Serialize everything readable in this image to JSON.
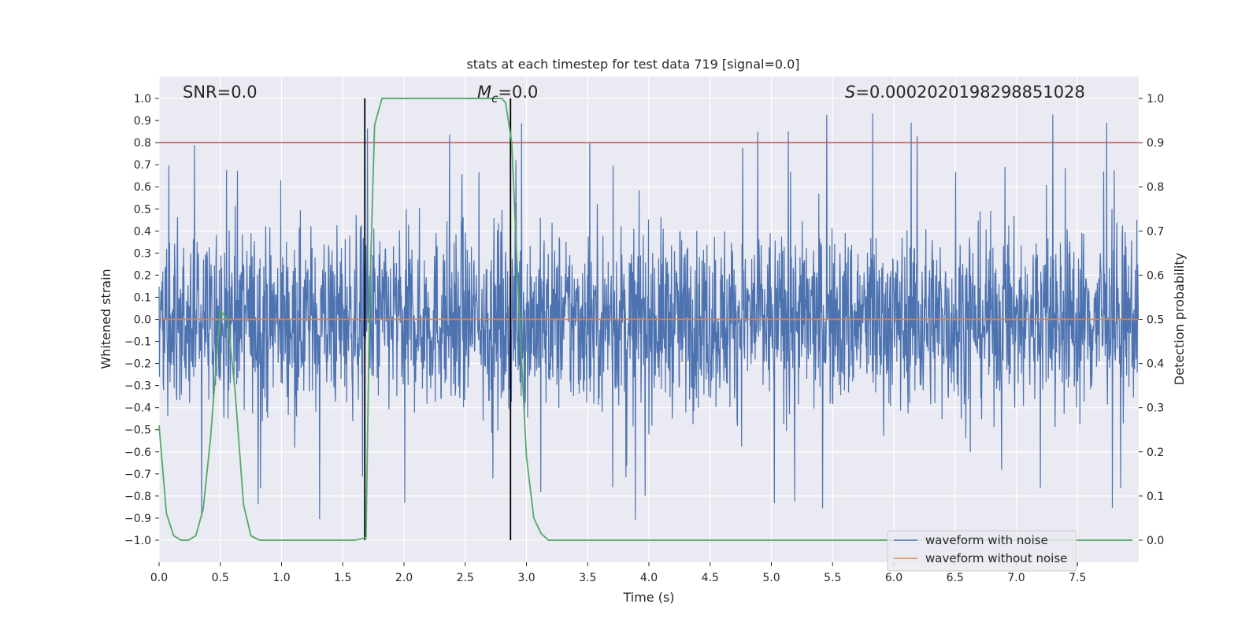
{
  "chart_data": {
    "type": "line",
    "title": "stats at each timestep for test data 719 [signal=0.0]",
    "xlabel": "Time (s)",
    "ylabel_left": "Whitened strain",
    "ylabel_right": "Detection probability",
    "xlim": [
      0.0,
      8.0
    ],
    "ylim_left": [
      -1.1,
      1.1
    ],
    "ylim_right": [
      -0.05,
      1.05
    ],
    "xticks": [
      0.0,
      0.5,
      1.0,
      1.5,
      2.0,
      2.5,
      3.0,
      3.5,
      4.0,
      4.5,
      5.0,
      5.5,
      6.0,
      6.5,
      7.0,
      7.5
    ],
    "xtick_labels": [
      "0.0",
      "0.5",
      "1.0",
      "1.5",
      "2.0",
      "2.5",
      "3.0",
      "3.5",
      "4.0",
      "4.5",
      "5.0",
      "5.5",
      "6.0",
      "6.5",
      "7.0",
      "7.5"
    ],
    "yticks_left": [
      1.0,
      0.9,
      0.8,
      0.7,
      0.6,
      0.5,
      0.4,
      0.3,
      0.2,
      0.1,
      0.0,
      -0.1,
      -0.2,
      -0.3,
      -0.4,
      -0.5,
      -0.6,
      -0.7,
      -0.8,
      -0.9,
      -1.0
    ],
    "ytick_labels_left": [
      "1.0",
      "0.9",
      "0.8",
      "0.7",
      "0.6",
      "0.5",
      "0.4",
      "0.3",
      "0.2",
      "0.1",
      "0.0",
      "−0.1",
      "−0.2",
      "−0.3",
      "−0.4",
      "−0.5",
      "−0.6",
      "−0.7",
      "−0.8",
      "−0.9",
      "−1.0"
    ],
    "yticks_right": [
      1.0,
      0.9,
      0.8,
      0.7,
      0.6,
      0.5,
      0.4,
      0.3,
      0.2,
      0.1,
      0.0
    ],
    "ytick_labels_right": [
      "1.0",
      "0.9",
      "0.8",
      "0.7",
      "0.6",
      "0.5",
      "0.4",
      "0.3",
      "0.2",
      "0.1",
      "0.0"
    ],
    "grid": true,
    "legend_position": "lower-right",
    "annotations": {
      "snr": "SNR=0.0",
      "mc_prefix": "M",
      "mc_sub": "c",
      "mc_suffix": "=0.0",
      "s_prefix": "S",
      "s_suffix": "=0.00020201982988510 28"
    },
    "threshold_right_axis": 0.9,
    "vertical_markers_x": [
      1.68,
      2.87
    ],
    "series": [
      {
        "name": "waveform with noise",
        "color": "#4c72b0",
        "kind": "noise",
        "envelope_min": -1.0,
        "envelope_max": 0.99,
        "duration_s": 8.0
      },
      {
        "name": "waveform without noise",
        "color": "#dd8452",
        "kind": "constant",
        "value": 0.0
      },
      {
        "name": "detection probability",
        "color": "#55a868",
        "axis": "right",
        "x": [
          0.0,
          0.06,
          0.12,
          0.18,
          0.24,
          0.3,
          0.36,
          0.42,
          0.5,
          0.56,
          0.62,
          0.69,
          0.75,
          0.82,
          0.9,
          1.0,
          1.2,
          1.4,
          1.6,
          1.65,
          1.69,
          1.72,
          1.76,
          1.82,
          2.0,
          2.4,
          2.8,
          2.83,
          2.88,
          2.94,
          3.0,
          3.06,
          3.12,
          3.18,
          3.26,
          3.4,
          4.0,
          5.0,
          6.0,
          7.0,
          7.95
        ],
        "y": [
          0.26,
          0.06,
          0.01,
          0.0,
          0.0,
          0.01,
          0.07,
          0.23,
          0.52,
          0.5,
          0.34,
          0.08,
          0.01,
          0.0,
          0.0,
          0.0,
          0.0,
          0.0,
          0.0,
          0.003,
          0.006,
          0.55,
          0.94,
          1.0,
          1.0,
          1.0,
          1.0,
          0.99,
          0.9,
          0.52,
          0.19,
          0.05,
          0.015,
          0.0,
          0.0,
          0.0,
          0.0,
          0.0,
          0.0,
          0.0,
          0.0
        ]
      }
    ],
    "legend_labels": [
      "waveform with noise",
      "waveform without noise"
    ],
    "colors": {
      "background": "#eaeaf2",
      "grid": "#ffffff",
      "threshold": "#c44e52",
      "markers": "#000000"
    }
  }
}
